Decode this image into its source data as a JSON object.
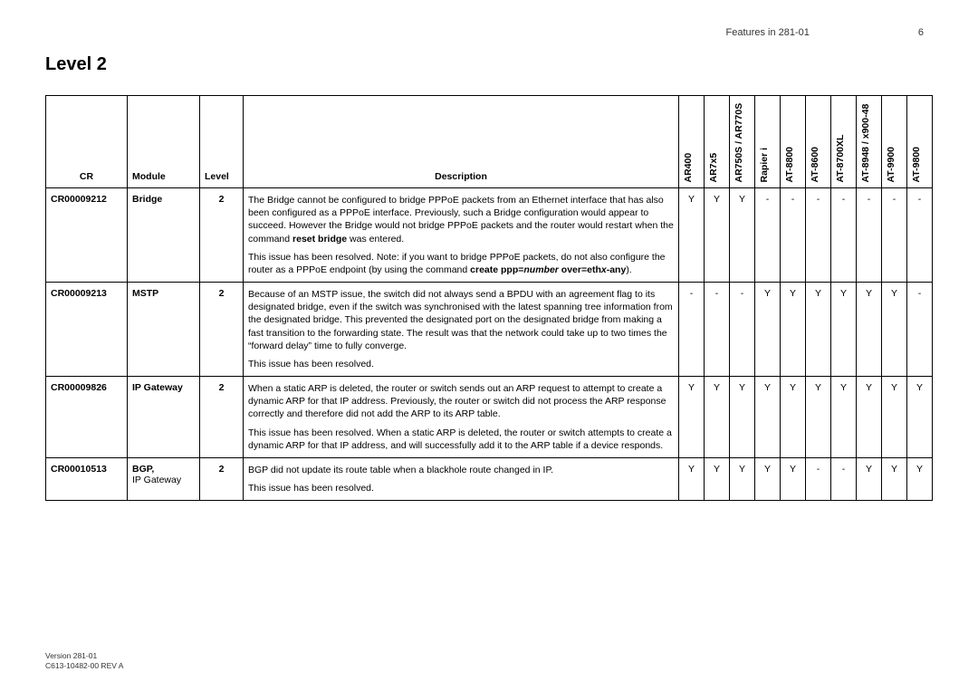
{
  "header": {
    "title": "Features in 281-01",
    "page": "6"
  },
  "section_title": "Level 2",
  "columns": {
    "cr": "CR",
    "module": "Module",
    "level": "Level",
    "description": "Description",
    "platforms": [
      "AR400",
      "AR7x5",
      "AR750S / AR770S",
      "Rapier i",
      "AT-8800",
      "AT-8600",
      "AT-8700XL",
      "AT-8948 / x900-48",
      "AT-9900",
      "AT-9800"
    ]
  },
  "rows": [
    {
      "cr": "CR00009212",
      "module": "Bridge",
      "level": "2",
      "desc_parts": [
        [
          {
            "t": "The Bridge cannot be configured to bridge PPPoE packets from an Ethernet interface that has also been configured as a PPPoE interface. Previously, such a Bridge configuration would appear to succeed. However the Bridge would not bridge PPPoE packets and the router would restart when the command "
          },
          {
            "t": "reset bridge",
            "cls": "b"
          },
          {
            "t": " was entered."
          }
        ],
        [
          {
            "t": "This issue has been resolved. Note: if you want to bridge PPPoE packets, do not also configure the router as a PPPoE endpoint (by using the command "
          },
          {
            "t": "create ppp=",
            "cls": "b"
          },
          {
            "t": "number",
            "cls": "bi"
          },
          {
            "t": " over=eth",
            "cls": "b"
          },
          {
            "t": "x",
            "cls": "bi"
          },
          {
            "t": "-any",
            "cls": "b"
          },
          {
            "t": ")."
          }
        ]
      ],
      "plat": [
        "Y",
        "Y",
        "Y",
        "-",
        "-",
        "-",
        "-",
        "-",
        "-",
        "-"
      ]
    },
    {
      "cr": "CR00009213",
      "module": "MSTP",
      "level": "2",
      "desc_parts": [
        [
          {
            "t": "Because of an MSTP issue, the switch did not always send a BPDU with an agreement flag to its designated bridge, even if the switch was synchronised with the latest spanning tree information from the designated bridge. This prevented the designated port on the designated bridge from making a fast transition to the forwarding state. The result was that the network could take up to two times the “forward delay” time to fully converge."
          }
        ],
        [
          {
            "t": "This issue has been resolved."
          }
        ]
      ],
      "plat": [
        "-",
        "-",
        "-",
        "Y",
        "Y",
        "Y",
        "Y",
        "Y",
        "Y",
        "-"
      ]
    },
    {
      "cr": "CR00009826",
      "module": "IP Gateway",
      "level": "2",
      "desc_parts": [
        [
          {
            "t": "When a static ARP is deleted, the router or switch sends out an ARP request to attempt to create a dynamic ARP for that IP address. Previously, the router or switch did not process the ARP response correctly and therefore did not add the ARP to its ARP table."
          }
        ],
        [
          {
            "t": "This issue has been resolved. When a static ARP is deleted, the router or switch attempts to create a dynamic ARP for that IP address, and will successfully add it to the ARP table if a device responds."
          }
        ]
      ],
      "plat": [
        "Y",
        "Y",
        "Y",
        "Y",
        "Y",
        "Y",
        "Y",
        "Y",
        "Y",
        "Y"
      ]
    },
    {
      "cr": "CR00010513",
      "module_parts": [
        {
          "t": "BGP,",
          "cls": "b"
        },
        {
          "t": "IP Gateway",
          "cls": "mod-nb"
        }
      ],
      "level": "2",
      "desc_parts": [
        [
          {
            "t": "BGP did not update its route table when a blackhole route changed in IP."
          }
        ],
        [
          {
            "t": "This issue has been resolved."
          }
        ]
      ],
      "plat": [
        "Y",
        "Y",
        "Y",
        "Y",
        "Y",
        "-",
        "-",
        "Y",
        "Y",
        "Y"
      ]
    }
  ],
  "footer": {
    "line1": "Version 281-01",
    "line2": "C613-10482-00 REV A"
  }
}
